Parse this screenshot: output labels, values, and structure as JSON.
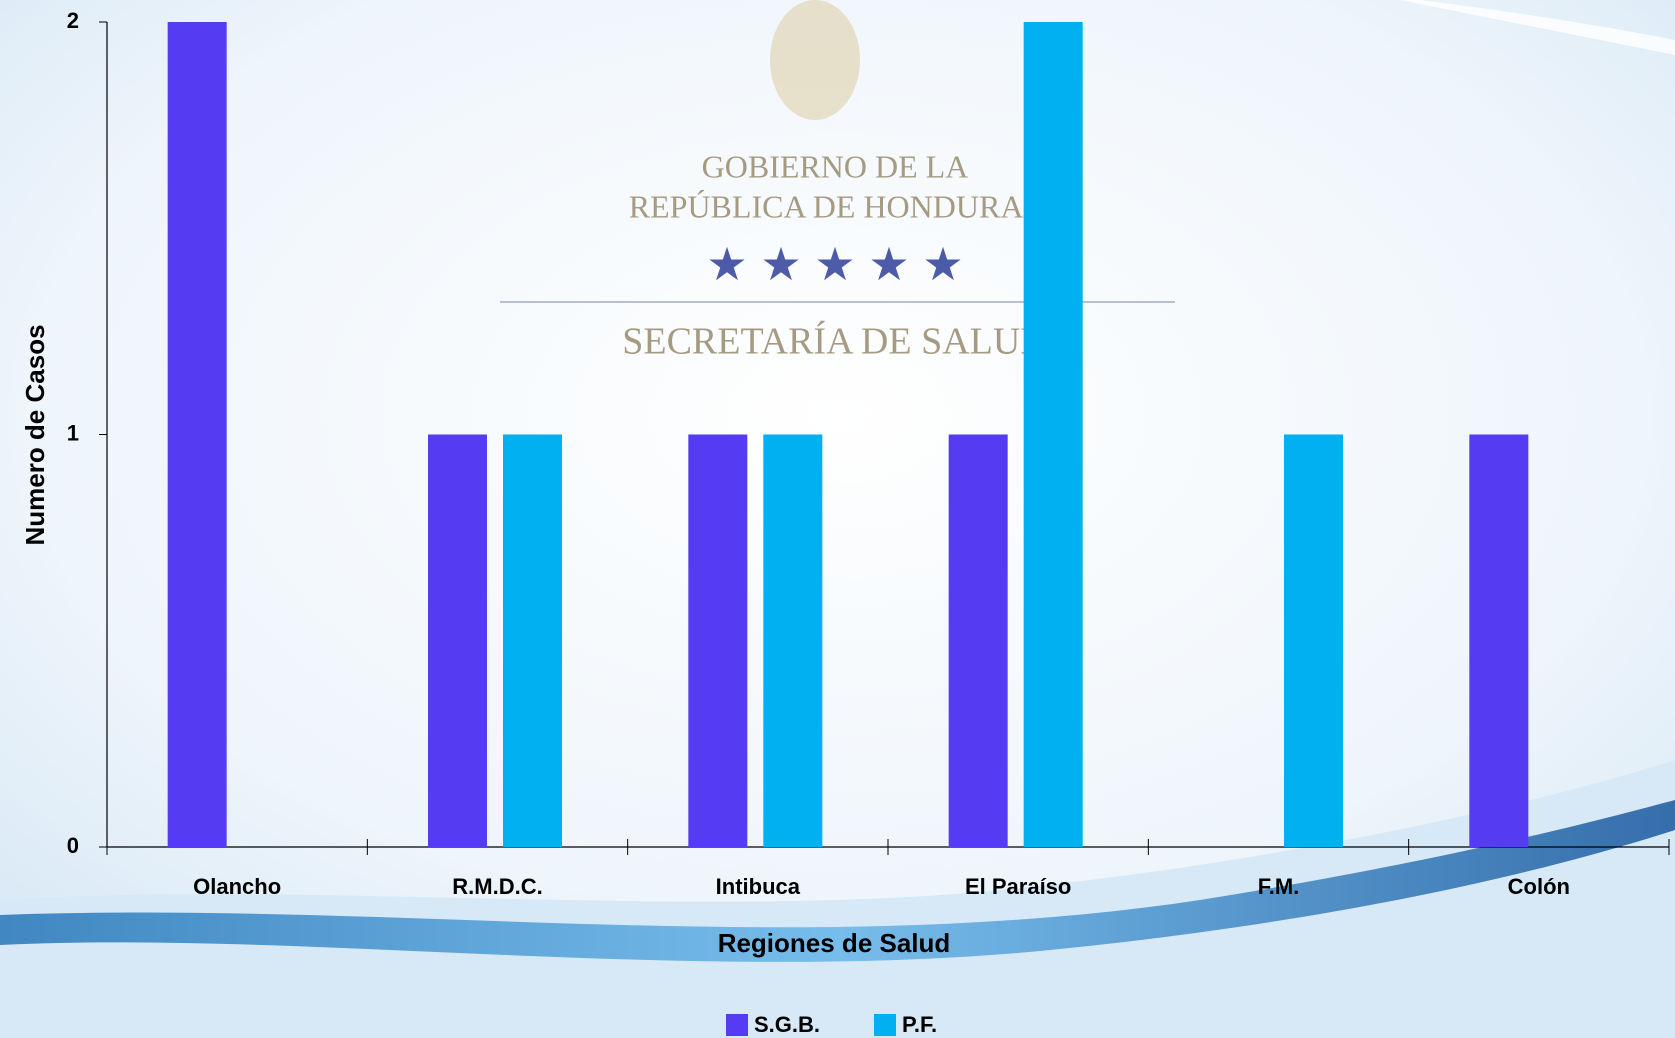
{
  "watermark": {
    "line1": "GOBIERNO DE LA",
    "line2": "REPÚBLICA DE HONDURAS",
    "line3": "SECRETARÍA DE SALUD"
  },
  "chart_data": {
    "type": "bar",
    "x_label": "Regiones de Salud",
    "y_label": "Numero de Casos",
    "categories": [
      "Olancho",
      "R.M.D.C.",
      "Intibuca",
      "El Paraíso",
      "F.M.",
      "Colón"
    ],
    "series": [
      {
        "name": "S.G.B.",
        "color": "#553bf2",
        "values": [
          2,
          1,
          1,
          1,
          0,
          1
        ]
      },
      {
        "name": "P.F.",
        "color": "#00b0f0",
        "values": [
          0,
          1,
          1,
          2,
          1,
          0
        ]
      }
    ],
    "ylim": [
      0,
      2
    ],
    "yticks": [
      0,
      1,
      2
    ],
    "grid": false,
    "legend": "bottom"
  }
}
